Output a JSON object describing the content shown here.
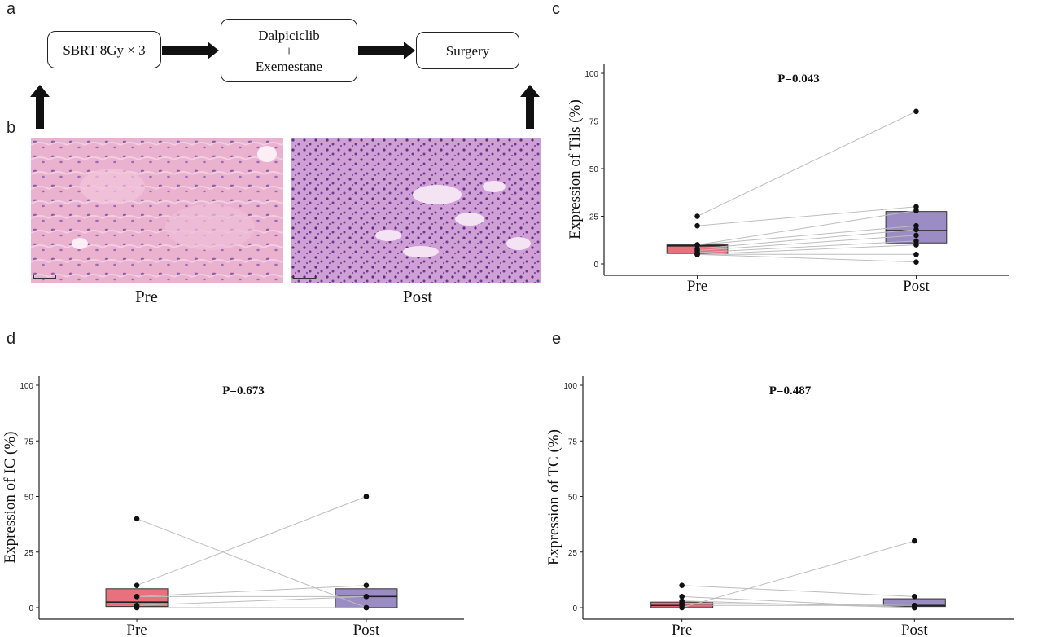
{
  "panels": {
    "a": "a",
    "b": "b",
    "c": "c",
    "d": "d",
    "e": "e"
  },
  "flowchart": {
    "box1": "SBRT 8Gy × 3",
    "box2_line1": "Dalpiciclib",
    "box2_line2": "+",
    "box2_line3": "Exemestane",
    "box3": "Surgery"
  },
  "histology": {
    "left_label": "Pre",
    "right_label": "Post",
    "colors": {
      "pre_bg": "#e7a9c9",
      "post_bg": "#c99ad0"
    }
  },
  "colors": {
    "pre_box": "#e9707d",
    "post_box": "#9b8cc4",
    "line": "#bdbdbd",
    "point": "#111111"
  },
  "chart_data": [
    {
      "id": "c",
      "type": "box",
      "ylabel": "Expression of Tils (%)",
      "annotation": "P=0.043",
      "categories": [
        "Pre",
        "Post"
      ],
      "ylim": [
        0,
        100
      ],
      "yticks": [
        "0",
        "25",
        "50",
        "75",
        "100"
      ],
      "boxes": [
        {
          "q1": 5.5,
          "median": 9.5,
          "q3": 10
        },
        {
          "q1": 11,
          "median": 17.5,
          "q3": 27.5
        }
      ],
      "pairs": [
        [
          25,
          80
        ],
        [
          20,
          30
        ],
        [
          10,
          28
        ],
        [
          10,
          20
        ],
        [
          8,
          18
        ],
        [
          7,
          15
        ],
        [
          6,
          12
        ],
        [
          5,
          10
        ],
        [
          5,
          5
        ],
        [
          5,
          1
        ]
      ]
    },
    {
      "id": "d",
      "type": "box",
      "ylabel": "Expression of  IC (%)",
      "annotation": "P=0.673",
      "categories": [
        "Pre",
        "Post"
      ],
      "ylim": [
        0,
        100
      ],
      "yticks": [
        "0",
        "25",
        "50",
        "75",
        "100"
      ],
      "boxes": [
        {
          "q1": 0.5,
          "median": 2.5,
          "q3": 8.5
        },
        {
          "q1": 0,
          "median": 5,
          "q3": 8.5
        }
      ],
      "pairs": [
        [
          40,
          0
        ],
        [
          10,
          50
        ],
        [
          5,
          10
        ],
        [
          5,
          5
        ],
        [
          1,
          5
        ],
        [
          0,
          0
        ]
      ]
    },
    {
      "id": "e",
      "type": "box",
      "ylabel": "Expression of  TC (%)",
      "annotation": "P=0.487",
      "categories": [
        "Pre",
        "Post"
      ],
      "ylim": [
        0,
        100
      ],
      "yticks": [
        "0",
        "25",
        "50",
        "75",
        "100"
      ],
      "boxes": [
        {
          "q1": 0,
          "median": 1,
          "q3": 2.5
        },
        {
          "q1": 0.5,
          "median": 1,
          "q3": 4
        }
      ],
      "pairs": [
        [
          10,
          5
        ],
        [
          5,
          0
        ],
        [
          3,
          0
        ],
        [
          2,
          1
        ],
        [
          1,
          1
        ],
        [
          0,
          30
        ]
      ]
    }
  ]
}
